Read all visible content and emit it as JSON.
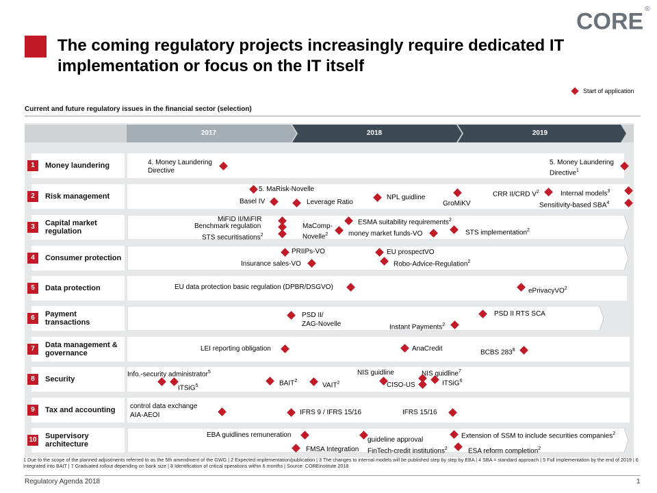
{
  "logo": {
    "text": "CORE",
    "mark": "®"
  },
  "title": "The coming regulatory projects increasingly require dedicated IT implementation or focus on the IT itself",
  "legend_label": "Start of application",
  "subtitle": "Current and future regulatory issues in the financial sector (selection)",
  "years": [
    "2017",
    "2018",
    "2019"
  ],
  "rows": [
    {
      "num": "1",
      "label": "Money laundering"
    },
    {
      "num": "2",
      "label": "Risk management"
    },
    {
      "num": "3",
      "label": "Capital market regulation"
    },
    {
      "num": "4",
      "label": "Consumer protection"
    },
    {
      "num": "5",
      "label": "Data protection"
    },
    {
      "num": "6",
      "label": "Payment transactions"
    },
    {
      "num": "7",
      "label": "Data management & governance"
    },
    {
      "num": "8",
      "label": "Security"
    },
    {
      "num": "9",
      "label": "Tax and accounting"
    },
    {
      "num": "10",
      "label": "Supervisory architecture"
    }
  ],
  "items": {
    "r1_a": "4. Money Laundering",
    "r1_b": "Directive",
    "r1_c": "5. Money Laundering",
    "r1_d": "Directive",
    "r2_marisk": "5. MaRisk-Novelle",
    "r2_basel": "Basel IV",
    "r2_leverage": "Leverage Ratio",
    "r2_npl": "NPL  guidline",
    "r2_gromikv": "GroMiKV",
    "r2_crr": "CRR  II/CRD  V",
    "r2_internal": "Internal models",
    "r2_sba": "Sensitivity-based SBA",
    "r3_mifid": "MiFID  II/MiFIR",
    "r3_benchmark": "Benchmark regulation",
    "r3_sts_sec": "STS  securitisations",
    "r3_macomp1": "MaComp-",
    "r3_macomp2": "Novelle",
    "r3_esma": "ESMA  suitability requirements",
    "r3_mmf": "money market funds-VO",
    "r3_sts_impl": "STS  implementation",
    "r4_priips": "PRIIPs-VO",
    "r4_ins": "Insurance sales-VO",
    "r4_prosp": "EU  prospectVO",
    "r4_robo": "Robo-Advice-Regulation",
    "r5_gdpr": "EU  data protection basic regulation (DPBR/DSGVO)",
    "r5_eprivacy": "ePrivacyVO",
    "r6_psd1": "PSD  II/",
    "r6_psd2": "ZAG-Novelle",
    "r6_instant": "Instant Payments",
    "r6_rts": "PSD  II RTS SCA",
    "r7_lei": "LEI  reporting obligation",
    "r7_ana": "AnaCredit",
    "r7_bcbs": "BCBS 283",
    "r8_info": "Info.-security administrator",
    "r8_itsig1": "ITSiG",
    "r8_bait": "BAIT",
    "r8_vait": "VAIT",
    "r8_nis1": "NIS  guidline",
    "r8_ciso": "CISO-US",
    "r8_nis2": "NIS  guidline",
    "r8_itsig2": "ITSiG",
    "r9_ctrl1": "control data exchange",
    "r9_ctrl2": "AIA-AEOI",
    "r9_ifrs9": "IFRS  9 / IFRS  15/16",
    "r9_ifrs15": "IFRS  15/16",
    "r10_eba": "EBA guidlines remuneration",
    "r10_fmsa": "FMSA  Integration",
    "r10_guid1": "guideline approval",
    "r10_guid2": "FinTech-credit institutions",
    "r10_ssm": "Extension of SSM to include securities companies",
    "r10_esa": "ESA  reform completion"
  },
  "sups": {
    "r1_d": "1",
    "r2_crr": "2",
    "r2_internal": "3",
    "r2_sba": "4",
    "r3_sts_sec": "2",
    "r3_macomp2": "2",
    "r3_esma": "2",
    "r3_sts_impl": "2",
    "r4_robo": "2",
    "r5_eprivacy": "2",
    "r6_instant": "2",
    "r7_bcbs": "8",
    "r8_info": "5",
    "r8_itsig1": "5",
    "r8_bait": "2",
    "r8_vait": "2",
    "r8_nis2": "7",
    "r8_itsig2": "6",
    "r10_guid2": "2",
    "r10_ssm": "2",
    "r10_esa": "2"
  },
  "footnote": "1 Due to the scope of the planned adjustments referred to as the 5th amendment of the GWG | 2 Expected  implementation/publication   | 3 The changes  to internal models will be published  step by step by EBA | 4 SBA = standard  approach  | 5 Full implementation  by the end of 2019 | 6 Integrated  into BAIT | 7 Graduated  rollout depending  on bank size | 8 Identification  of critical operations  within 6 months | Source: COREinstitute 2018",
  "footer_left": "Regulatory Agenda 2018",
  "footer_right": "1",
  "colors": {
    "accent": "#c21a26",
    "dark_arrow": "#3d4a55",
    "light_arrow": "#a5adb5",
    "panel": "#e6e7e8"
  }
}
